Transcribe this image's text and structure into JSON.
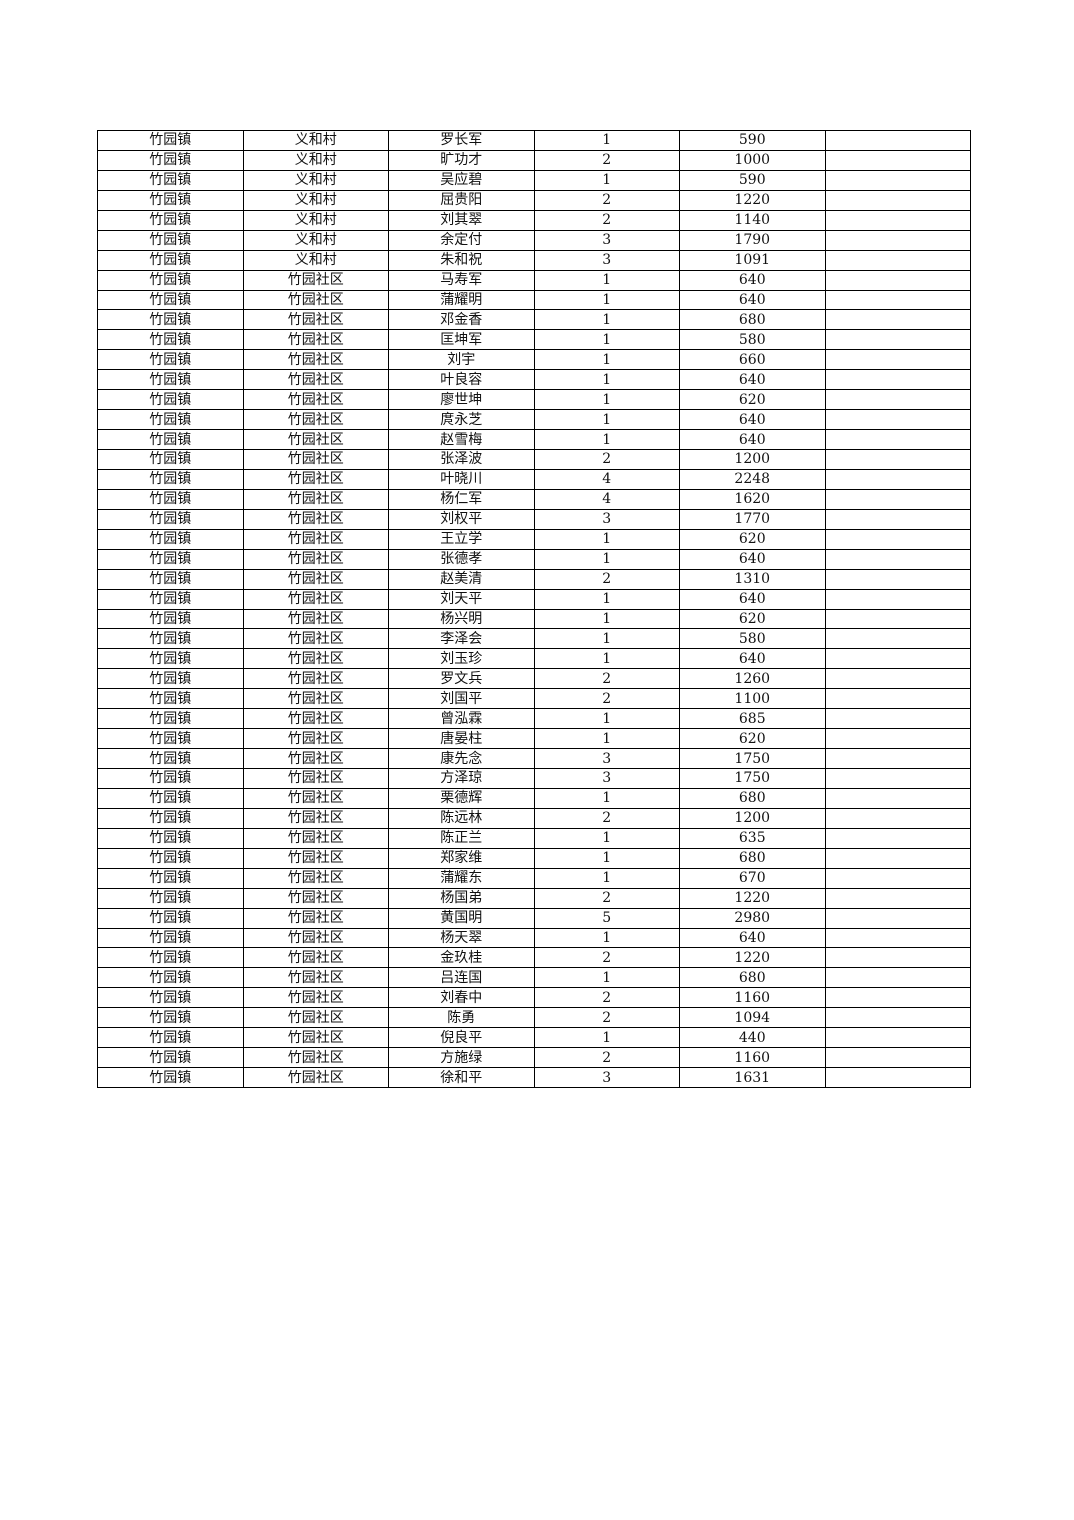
{
  "rows": [
    [
      "竹园镇",
      "义和村",
      "罗长军",
      "1",
      "590",
      ""
    ],
    [
      "竹园镇",
      "义和村",
      "旷功才",
      "2",
      "1000",
      ""
    ],
    [
      "竹园镇",
      "义和村",
      "吴应碧",
      "1",
      "590",
      ""
    ],
    [
      "竹园镇",
      "义和村",
      "屈贵阳",
      "2",
      "1220",
      ""
    ],
    [
      "竹园镇",
      "义和村",
      "刘其翠",
      "2",
      "1140",
      ""
    ],
    [
      "竹园镇",
      "义和村",
      "余定付",
      "3",
      "1790",
      ""
    ],
    [
      "竹园镇",
      "义和村",
      "朱和祝",
      "3",
      "1091",
      ""
    ],
    [
      "竹园镇",
      "竹园社区",
      "马寿军",
      "1",
      "640",
      ""
    ],
    [
      "竹园镇",
      "竹园社区",
      "蒲耀明",
      "1",
      "640",
      ""
    ],
    [
      "竹园镇",
      "竹园社区",
      "邓金香",
      "1",
      "680",
      ""
    ],
    [
      "竹园镇",
      "竹园社区",
      "匡坤军",
      "1",
      "580",
      ""
    ],
    [
      "竹园镇",
      "竹园社区",
      "刘宇",
      "1",
      "660",
      ""
    ],
    [
      "竹园镇",
      "竹园社区",
      "叶良容",
      "1",
      "640",
      ""
    ],
    [
      "竹园镇",
      "竹园社区",
      "廖世坤",
      "1",
      "620",
      ""
    ],
    [
      "竹园镇",
      "竹园社区",
      "庹永芝",
      "1",
      "640",
      ""
    ],
    [
      "竹园镇",
      "竹园社区",
      "赵雪梅",
      "1",
      "640",
      ""
    ],
    [
      "竹园镇",
      "竹园社区",
      "张泽波",
      "2",
      "1200",
      ""
    ],
    [
      "竹园镇",
      "竹园社区",
      "叶晓川",
      "4",
      "2248",
      ""
    ],
    [
      "竹园镇",
      "竹园社区",
      "杨仁军",
      "4",
      "1620",
      ""
    ],
    [
      "竹园镇",
      "竹园社区",
      "刘权平",
      "3",
      "1770",
      ""
    ],
    [
      "竹园镇",
      "竹园社区",
      "王立学",
      "1",
      "620",
      ""
    ],
    [
      "竹园镇",
      "竹园社区",
      "张德孝",
      "1",
      "640",
      ""
    ],
    [
      "竹园镇",
      "竹园社区",
      "赵美清",
      "2",
      "1310",
      ""
    ],
    [
      "竹园镇",
      "竹园社区",
      "刘天平",
      "1",
      "640",
      ""
    ],
    [
      "竹园镇",
      "竹园社区",
      "杨兴明",
      "1",
      "620",
      ""
    ],
    [
      "竹园镇",
      "竹园社区",
      "李泽会",
      "1",
      "580",
      ""
    ],
    [
      "竹园镇",
      "竹园社区",
      "刘玉珍",
      "1",
      "640",
      ""
    ],
    [
      "竹园镇",
      "竹园社区",
      "罗文兵",
      "2",
      "1260",
      ""
    ],
    [
      "竹园镇",
      "竹园社区",
      "刘国平",
      "2",
      "1100",
      ""
    ],
    [
      "竹园镇",
      "竹园社区",
      "曾泓霖",
      "1",
      "685",
      ""
    ],
    [
      "竹园镇",
      "竹园社区",
      "唐晏柱",
      "1",
      "620",
      ""
    ],
    [
      "竹园镇",
      "竹园社区",
      "康先念",
      "3",
      "1750",
      ""
    ],
    [
      "竹园镇",
      "竹园社区",
      "方泽琼",
      "3",
      "1750",
      ""
    ],
    [
      "竹园镇",
      "竹园社区",
      "栗德辉",
      "1",
      "680",
      ""
    ],
    [
      "竹园镇",
      "竹园社区",
      "陈远林",
      "2",
      "1200",
      ""
    ],
    [
      "竹园镇",
      "竹园社区",
      "陈正兰",
      "1",
      "635",
      ""
    ],
    [
      "竹园镇",
      "竹园社区",
      "郑家维",
      "1",
      "680",
      ""
    ],
    [
      "竹园镇",
      "竹园社区",
      "蒲耀东",
      "1",
      "670",
      ""
    ],
    [
      "竹园镇",
      "竹园社区",
      "杨国弟",
      "2",
      "1220",
      ""
    ],
    [
      "竹园镇",
      "竹园社区",
      "黄国明",
      "5",
      "2980",
      ""
    ],
    [
      "竹园镇",
      "竹园社区",
      "杨天翠",
      "1",
      "640",
      ""
    ],
    [
      "竹园镇",
      "竹园社区",
      "金玖桂",
      "2",
      "1220",
      ""
    ],
    [
      "竹园镇",
      "竹园社区",
      "吕连国",
      "1",
      "680",
      ""
    ],
    [
      "竹园镇",
      "竹园社区",
      "刘春中",
      "2",
      "1160",
      ""
    ],
    [
      "竹园镇",
      "竹园社区",
      "陈勇",
      "2",
      "1094",
      ""
    ],
    [
      "竹园镇",
      "竹园社区",
      "倪良平",
      "1",
      "440",
      ""
    ],
    [
      "竹园镇",
      "竹园社区",
      "方施绿",
      "2",
      "1160",
      ""
    ],
    [
      "竹园镇",
      "竹园社区",
      "徐和平",
      "3",
      "1631",
      ""
    ]
  ]
}
